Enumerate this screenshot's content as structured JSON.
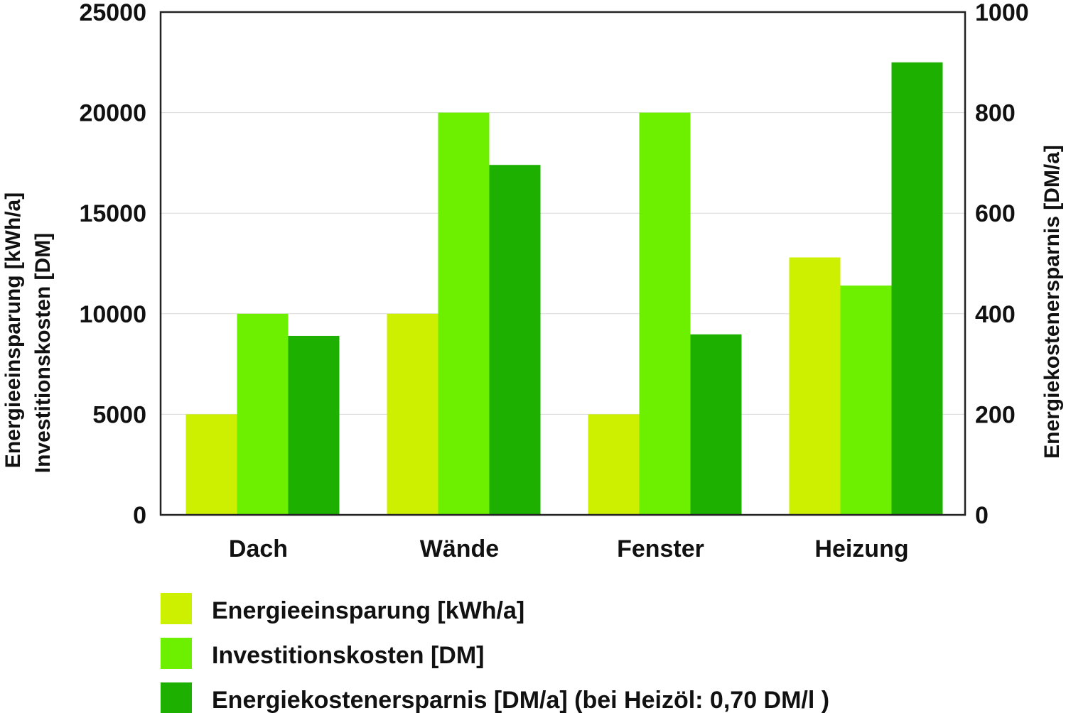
{
  "chart_data": {
    "type": "bar",
    "categories": [
      "Dach",
      "Wände",
      "Fenster",
      "Heizung"
    ],
    "series": [
      {
        "name": "Energieeinsparung [kWh/a]",
        "axis": "left",
        "color": "#ccf000",
        "values": [
          5000,
          10000,
          5000,
          12800
        ]
      },
      {
        "name": "Investitionskosten [DM]",
        "axis": "left",
        "color": "#6cf000",
        "values": [
          10000,
          20000,
          20000,
          11400
        ]
      },
      {
        "name": "Energiekostenersparnis [DM/a] (bei Heizöl: 0,70 DM/l )",
        "axis": "right",
        "color": "#1db000",
        "values": [
          356,
          696,
          359,
          900
        ]
      }
    ],
    "left_axis": {
      "label_lines": [
        "Energieeinsparung [kWh/a]",
        "Investitionskosten [DM]"
      ],
      "ylim": [
        0,
        25000
      ],
      "ticks": [
        0,
        5000,
        10000,
        15000,
        20000,
        25000
      ],
      "tick_labels": [
        "0",
        "5000",
        "10000",
        "15000",
        "20000",
        "25000"
      ]
    },
    "right_axis": {
      "label": "Energiekostenersparnis [DM/a]",
      "ylim": [
        0,
        1000
      ],
      "ticks": [
        0,
        200,
        400,
        600,
        800,
        1000
      ],
      "tick_labels": [
        "0",
        "200",
        "400",
        "600",
        "800",
        "1000"
      ]
    },
    "grid": true,
    "legend_position": "bottom-left"
  }
}
